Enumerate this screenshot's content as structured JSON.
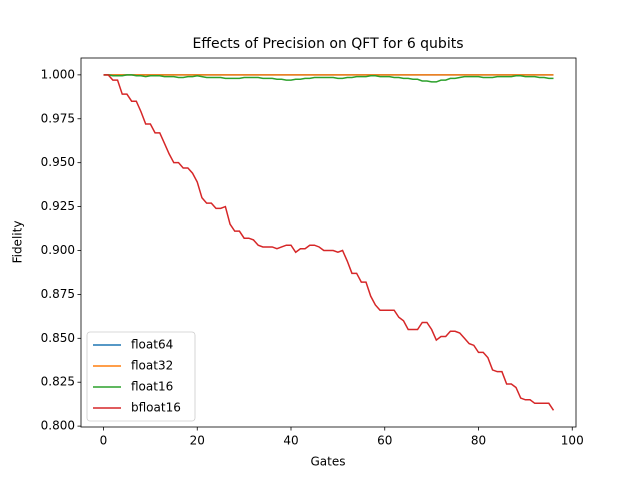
{
  "chart_data": {
    "type": "line",
    "title": "Effects of Precision on QFT for 6 qubits",
    "xlabel": "Gates",
    "ylabel": "Fidelity",
    "x": [
      0,
      1,
      2,
      3,
      4,
      5,
      6,
      7,
      8,
      9,
      10,
      11,
      12,
      13,
      14,
      15,
      16,
      17,
      18,
      19,
      20,
      21,
      22,
      23,
      24,
      25,
      26,
      27,
      28,
      29,
      30,
      31,
      32,
      33,
      34,
      35,
      36,
      37,
      38,
      39,
      40,
      41,
      42,
      43,
      44,
      45,
      46,
      47,
      48,
      49,
      50,
      51,
      52,
      53,
      54,
      55,
      56,
      57,
      58,
      59,
      60,
      61,
      62,
      63,
      64,
      65,
      66,
      67,
      68,
      69,
      70,
      71,
      72,
      73,
      74,
      75,
      76,
      77,
      78,
      79,
      80,
      81,
      82,
      83,
      84,
      85,
      86,
      87,
      88,
      89,
      90,
      91,
      92,
      93,
      94,
      95,
      96
    ],
    "series": [
      {
        "name": "float64",
        "color": "#1f77b4",
        "values": [
          1,
          1,
          1,
          1,
          1,
          1,
          1,
          1,
          1,
          1,
          1,
          1,
          1,
          1,
          1,
          1,
          1,
          1,
          1,
          1,
          1,
          1,
          1,
          1,
          1,
          1,
          1,
          1,
          1,
          1,
          1,
          1,
          1,
          1,
          1,
          1,
          1,
          1,
          1,
          1,
          1,
          1,
          1,
          1,
          1,
          1,
          1,
          1,
          1,
          1,
          1,
          1,
          1,
          1,
          1,
          1,
          1,
          1,
          1,
          1,
          1,
          1,
          1,
          1,
          1,
          1,
          1,
          1,
          1,
          1,
          1,
          1,
          1,
          1,
          1,
          1,
          1,
          1,
          1,
          1,
          1,
          1,
          1,
          1,
          1,
          1,
          1,
          1,
          1,
          1,
          1,
          1,
          1,
          1,
          1,
          1,
          1
        ]
      },
      {
        "name": "float32",
        "color": "#ff7f0e",
        "values": [
          1,
          1,
          1,
          1,
          1,
          1,
          1,
          1,
          1,
          1,
          1,
          1,
          1,
          1,
          1,
          1,
          1,
          1,
          1,
          1,
          1,
          1,
          1,
          1,
          1,
          1,
          1,
          1,
          1,
          1,
          1,
          1,
          1,
          1,
          1,
          1,
          1,
          1,
          1,
          1,
          1,
          1,
          1,
          1,
          1,
          1,
          1,
          1,
          1,
          1,
          1,
          1,
          1,
          1,
          1,
          1,
          1,
          1,
          1,
          1,
          1,
          1,
          1,
          1,
          1,
          1,
          1,
          1,
          1,
          1,
          1,
          1,
          1,
          1,
          1,
          1,
          1,
          1,
          1,
          1,
          1,
          1,
          1,
          1,
          1,
          1,
          1,
          1,
          1,
          1,
          1,
          1,
          1,
          1,
          1,
          1,
          1
        ]
      },
      {
        "name": "float16",
        "color": "#2ca02c",
        "values": [
          1,
          1,
          0.9995,
          0.9995,
          0.9995,
          1,
          1,
          0.9995,
          0.9995,
          0.999,
          0.9995,
          0.9995,
          0.9995,
          0.999,
          0.999,
          0.999,
          0.9985,
          0.9985,
          0.999,
          0.999,
          0.9995,
          0.999,
          0.9985,
          0.9985,
          0.9985,
          0.9985,
          0.998,
          0.998,
          0.998,
          0.998,
          0.9985,
          0.9985,
          0.9985,
          0.9985,
          0.998,
          0.998,
          0.998,
          0.9975,
          0.9975,
          0.997,
          0.997,
          0.9975,
          0.9975,
          0.998,
          0.998,
          0.9985,
          0.9985,
          0.9985,
          0.9985,
          0.9985,
          0.998,
          0.998,
          0.9985,
          0.9985,
          0.999,
          0.999,
          0.999,
          0.9995,
          0.9995,
          0.999,
          0.999,
          0.999,
          0.9985,
          0.9985,
          0.998,
          0.998,
          0.9975,
          0.9975,
          0.9965,
          0.9965,
          0.996,
          0.996,
          0.997,
          0.997,
          0.998,
          0.998,
          0.9985,
          0.999,
          0.999,
          0.999,
          0.999,
          0.9985,
          0.9985,
          0.9985,
          0.999,
          0.999,
          0.999,
          0.999,
          0.9995,
          0.9995,
          0.999,
          0.999,
          0.999,
          0.9985,
          0.9985,
          0.998,
          0.998
        ]
      },
      {
        "name": "bfloat16",
        "color": "#d62728",
        "values": [
          1,
          1,
          0.997,
          0.997,
          0.989,
          0.989,
          0.985,
          0.985,
          0.979,
          0.972,
          0.972,
          0.967,
          0.967,
          0.961,
          0.955,
          0.95,
          0.95,
          0.947,
          0.947,
          0.944,
          0.939,
          0.93,
          0.927,
          0.927,
          0.924,
          0.924,
          0.925,
          0.915,
          0.911,
          0.911,
          0.907,
          0.907,
          0.906,
          0.903,
          0.902,
          0.902,
          0.902,
          0.901,
          0.902,
          0.903,
          0.903,
          0.899,
          0.901,
          0.901,
          0.903,
          0.903,
          0.902,
          0.9,
          0.9,
          0.9,
          0.899,
          0.9,
          0.894,
          0.887,
          0.887,
          0.882,
          0.882,
          0.874,
          0.869,
          0.866,
          0.866,
          0.866,
          0.866,
          0.862,
          0.86,
          0.855,
          0.855,
          0.855,
          0.859,
          0.859,
          0.855,
          0.849,
          0.851,
          0.851,
          0.854,
          0.854,
          0.853,
          0.85,
          0.847,
          0.846,
          0.842,
          0.842,
          0.839,
          0.832,
          0.831,
          0.831,
          0.824,
          0.824,
          0.822,
          0.816,
          0.815,
          0.815,
          0.813,
          0.813,
          0.813,
          0.813,
          0.809
        ]
      }
    ],
    "xlim": [
      -4.8,
      100.8
    ],
    "xticks": [
      0,
      20,
      40,
      60,
      80,
      100
    ],
    "ylim": [
      0.7995,
      1.0096
    ],
    "yticks": [
      {
        "value": 0.8,
        "label": "0.800"
      },
      {
        "value": 0.825,
        "label": "0.825"
      },
      {
        "value": 0.85,
        "label": "0.850"
      },
      {
        "value": 0.875,
        "label": "0.875"
      },
      {
        "value": 0.9,
        "label": "0.900"
      },
      {
        "value": 0.925,
        "label": "0.925"
      },
      {
        "value": 0.95,
        "label": "0.950"
      },
      {
        "value": 0.975,
        "label": "0.975"
      },
      {
        "value": 1.0,
        "label": "1.000"
      }
    ],
    "legend": "lower left"
  }
}
